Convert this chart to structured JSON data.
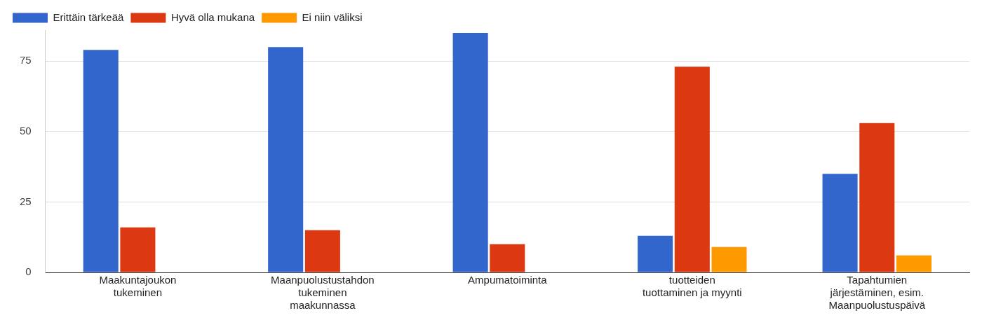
{
  "chart_data": {
    "type": "bar",
    "categories": [
      "Maakuntajoukon\ntukeminen",
      "Maanpuolustustahdon\ntukeminen\nmaakunnassa",
      "Ampumatoiminta",
      "tuotteiden\ntuottaminen ja myynti",
      "Tapahtumien\njärjestäminen, esim.\nMaanpuolustuspäivä"
    ],
    "series": [
      {
        "name": "Erittäin tärkeää",
        "color": "#3366cc",
        "values": [
          79,
          80,
          85,
          13,
          35
        ]
      },
      {
        "name": "Hyvä olla mukana",
        "color": "#dc3912",
        "values": [
          16,
          15,
          10,
          73,
          53
        ]
      },
      {
        "name": "Ei niin väliksi",
        "color": "#ff9900",
        "values": [
          0,
          0,
          0,
          9,
          6
        ]
      }
    ],
    "ylim": [
      0,
      86
    ],
    "yticks": [
      0,
      25,
      50,
      75
    ],
    "grid": "y",
    "legend": "top left"
  }
}
